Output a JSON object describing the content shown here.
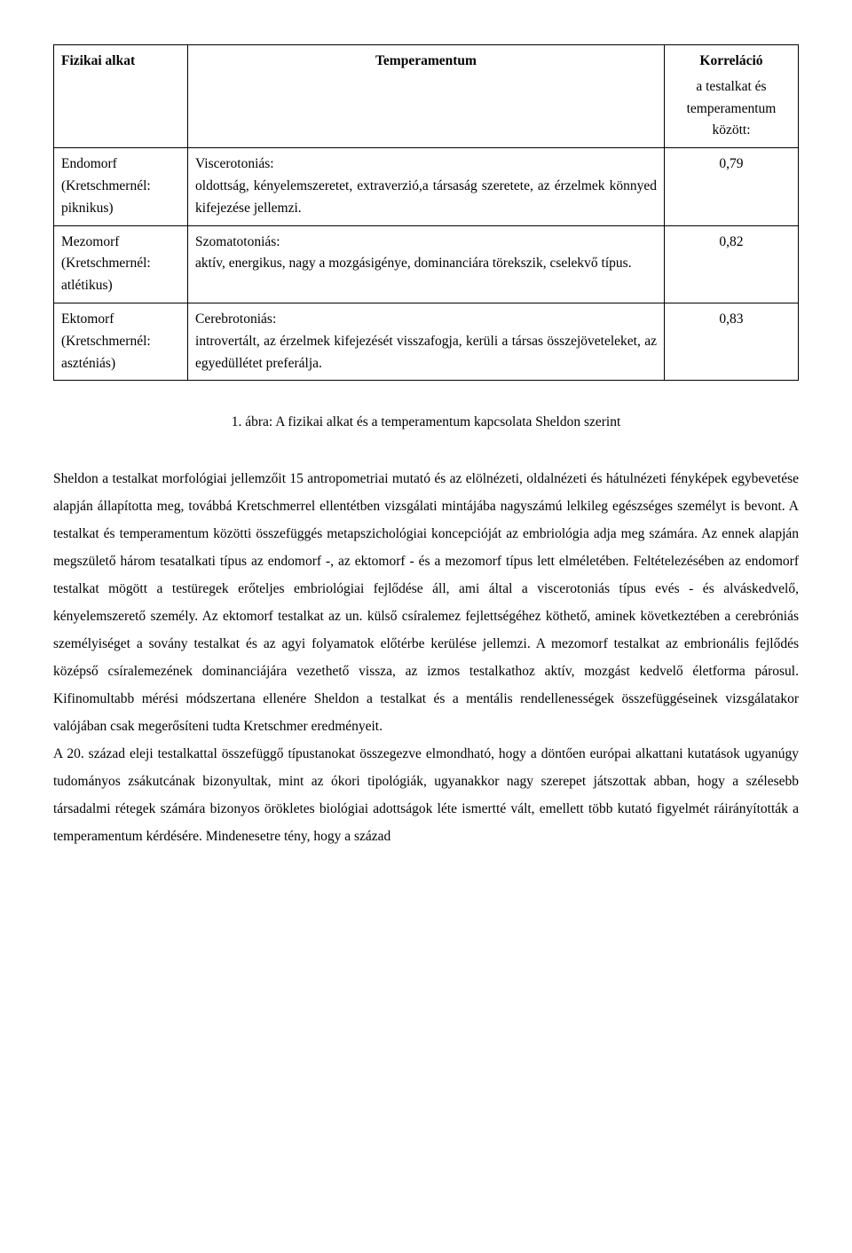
{
  "table": {
    "header": {
      "col1": "Fizikai alkat",
      "col2": "Temperamentum",
      "col3_main": "Korreláció",
      "col3_sub": "a testalkat és temperamentum között:"
    },
    "rows": [
      {
        "phys_line1": "Endomorf",
        "phys_line2": "(Kretschmernél:",
        "phys_line3": "piknikus)",
        "temp_title": "Viscerotoniás:",
        "temp_desc": "oldottság, kényelemszeretet, extraverzió,a társaság szeretete, az érzelmek könnyed kifejezése jellemzi.",
        "corr": "0,79"
      },
      {
        "phys_line1": "Mezomorf",
        "phys_line2": "(Kretschmernél:",
        "phys_line3": "atlétikus)",
        "temp_title": "Szomatotoniás:",
        "temp_desc": "aktív, energikus, nagy a mozgásigénye, dominanciára törekszik, cselekvő típus.",
        "corr": "0,82"
      },
      {
        "phys_line1": "Ektomorf",
        "phys_line2": "(Kretschmernél:",
        "phys_line3": "aszténiás)",
        "temp_title": "Cerebrotoniás:",
        "temp_desc": "introvertált, az érzelmek kifejezését visszafogja, kerüli a társas összejöveteleket, az egyedüllétet preferálja.",
        "corr": "0,83"
      }
    ]
  },
  "caption": "1. ábra: A fizikai alkat és a temperamentum kapcsolata Sheldon szerint",
  "paragraph1": "Sheldon a testalkat morfológiai jellemzőit 15 antropometriai mutató és az elölnézeti, oldalnézeti és hátulnézeti fényképek egybevetése alapján állapította meg, továbbá Kretschmerrel ellentétben vizsgálati mintájába nagyszámú lelkileg egészséges személyt is bevont. A testalkat és temperamentum közötti összefüggés metapszichológiai koncepcióját az embriológia adja meg számára. Az ennek alapján megszülető három tesatalkati típus az endomorf -, az ektomorf - és a mezomorf típus lett elméletében. Feltételezésében az endomorf testalkat mögött a testüregek erőteljes embriológiai fejlődése áll, ami által a viscerotoniás típus evés - és alváskedvelő, kényelemszerető személy. Az ektomorf testalkat az un. külső csíralemez fejlettségéhez köthető, aminek következtében a cerebróniás személyiséget a sovány testalkat és az agyi folyamatok előtérbe kerülése jellemzi. A mezomorf testalkat az embrionális fejlődés középső csíralemezének dominanciájára vezethető vissza, az izmos testalkathoz aktív, mozgást kedvelő életforma párosul. Kifinomultabb mérési módszertana ellenére Sheldon a testalkat és a mentális rendellenességek összefüggéseinek vizsgálatakor valójában csak megerősíteni tudta Kretschmer eredményeit.",
  "paragraph2": "A 20. század eleji testalkattal összefüggő típustanokat összegezve elmondható, hogy a döntően európai alkattani kutatások ugyanúgy tudományos zsákutcának bizonyultak, mint az ókori tipológiák, ugyanakkor nagy szerepet játszottak abban, hogy a szélesebb társadalmi rétegek számára bizonyos örökletes biológiai adottságok léte ismertté vált, emellett több kutató figyelmét ráirányították a temperamentum kérdésére. Mindenesetre tény, hogy a század"
}
